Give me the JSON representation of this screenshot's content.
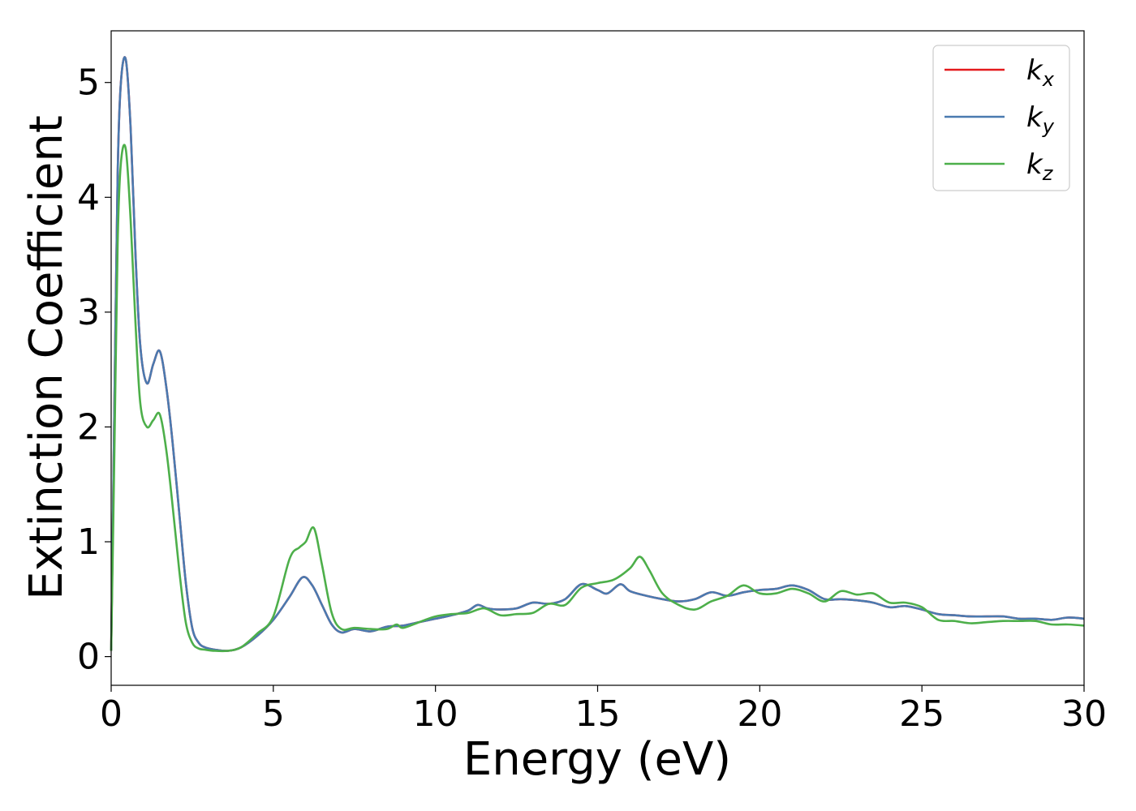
{
  "chart_data": {
    "type": "line",
    "xlabel": "Energy (eV)",
    "ylabel": "Extinction Coefficient",
    "xlim": [
      0,
      30
    ],
    "ylim": [
      -0.25,
      5.45
    ],
    "xticks": [
      0,
      5,
      10,
      15,
      20,
      25,
      30
    ],
    "yticks": [
      0,
      1,
      2,
      3,
      4,
      5
    ],
    "xtick_labels": [
      "0",
      "5",
      "10",
      "15",
      "20",
      "25",
      "30"
    ],
    "ytick_labels": [
      "0",
      "1",
      "2",
      "3",
      "4",
      "5"
    ],
    "grid": false,
    "legend_position": "top-right",
    "series": [
      {
        "name": "k_x",
        "label_main": "k",
        "label_sub": "x",
        "color": "#e41a1c",
        "x": [
          0,
          0.1,
          0.2,
          0.3,
          0.45,
          0.6,
          0.75,
          0.9,
          1.1,
          1.3,
          1.5,
          1.7,
          1.9,
          2.1,
          2.3,
          2.5,
          2.7,
          2.9,
          3.2,
          3.6,
          4.0,
          4.5,
          5.0,
          5.5,
          5.9,
          6.2,
          6.5,
          6.8,
          7.1,
          7.5,
          8.0,
          8.5,
          9.0,
          9.5,
          10.0,
          10.5,
          11.0,
          11.3,
          11.6,
          12.0,
          12.5,
          13.0,
          13.5,
          14.0,
          14.5,
          15.0,
          15.3,
          15.7,
          16.0,
          16.5,
          17.0,
          17.5,
          18.0,
          18.5,
          19.0,
          19.5,
          20.0,
          20.5,
          21.0,
          21.5,
          22.0,
          22.5,
          23.0,
          23.5,
          24.0,
          24.5,
          25.0,
          25.5,
          26.0,
          26.5,
          27.0,
          27.5,
          28.0,
          28.5,
          29.0,
          29.5,
          30.0
        ],
        "y": [
          0.05,
          2.2,
          4.2,
          5.0,
          5.2,
          4.6,
          3.5,
          2.7,
          2.38,
          2.55,
          2.66,
          2.35,
          1.85,
          1.25,
          0.65,
          0.25,
          0.12,
          0.08,
          0.06,
          0.05,
          0.08,
          0.18,
          0.32,
          0.52,
          0.69,
          0.62,
          0.45,
          0.28,
          0.21,
          0.24,
          0.22,
          0.26,
          0.27,
          0.3,
          0.33,
          0.36,
          0.4,
          0.45,
          0.42,
          0.41,
          0.42,
          0.47,
          0.46,
          0.5,
          0.63,
          0.58,
          0.55,
          0.63,
          0.57,
          0.53,
          0.5,
          0.48,
          0.5,
          0.56,
          0.53,
          0.56,
          0.58,
          0.59,
          0.62,
          0.58,
          0.5,
          0.5,
          0.49,
          0.47,
          0.43,
          0.44,
          0.41,
          0.37,
          0.36,
          0.35,
          0.35,
          0.35,
          0.33,
          0.33,
          0.32,
          0.34,
          0.33
        ]
      },
      {
        "name": "k_y",
        "label_main": "k",
        "label_sub": "y",
        "color": "#4a7ab0",
        "x": [
          0,
          0.1,
          0.2,
          0.3,
          0.45,
          0.6,
          0.75,
          0.9,
          1.1,
          1.3,
          1.5,
          1.7,
          1.9,
          2.1,
          2.3,
          2.5,
          2.7,
          2.9,
          3.2,
          3.6,
          4.0,
          4.5,
          5.0,
          5.5,
          5.9,
          6.2,
          6.5,
          6.8,
          7.1,
          7.5,
          8.0,
          8.5,
          9.0,
          9.5,
          10.0,
          10.5,
          11.0,
          11.3,
          11.6,
          12.0,
          12.5,
          13.0,
          13.5,
          14.0,
          14.5,
          15.0,
          15.3,
          15.7,
          16.0,
          16.5,
          17.0,
          17.5,
          18.0,
          18.5,
          19.0,
          19.5,
          20.0,
          20.5,
          21.0,
          21.5,
          22.0,
          22.5,
          23.0,
          23.5,
          24.0,
          24.5,
          25.0,
          25.5,
          26.0,
          26.5,
          27.0,
          27.5,
          28.0,
          28.5,
          29.0,
          29.5,
          30.0
        ],
        "y": [
          0.05,
          2.2,
          4.2,
          5.0,
          5.2,
          4.6,
          3.5,
          2.7,
          2.38,
          2.55,
          2.66,
          2.35,
          1.85,
          1.25,
          0.65,
          0.25,
          0.12,
          0.08,
          0.06,
          0.05,
          0.08,
          0.18,
          0.32,
          0.52,
          0.69,
          0.62,
          0.45,
          0.28,
          0.21,
          0.24,
          0.22,
          0.26,
          0.27,
          0.3,
          0.33,
          0.36,
          0.4,
          0.45,
          0.42,
          0.41,
          0.42,
          0.47,
          0.46,
          0.5,
          0.63,
          0.58,
          0.55,
          0.63,
          0.57,
          0.53,
          0.5,
          0.48,
          0.5,
          0.56,
          0.53,
          0.56,
          0.58,
          0.59,
          0.62,
          0.58,
          0.5,
          0.5,
          0.49,
          0.47,
          0.43,
          0.44,
          0.41,
          0.37,
          0.36,
          0.35,
          0.35,
          0.35,
          0.33,
          0.33,
          0.32,
          0.34,
          0.33
        ]
      },
      {
        "name": "k_z",
        "label_main": "k",
        "label_sub": "z",
        "color": "#4daf4a",
        "x": [
          0,
          0.1,
          0.2,
          0.3,
          0.45,
          0.6,
          0.75,
          0.9,
          1.1,
          1.3,
          1.5,
          1.7,
          1.9,
          2.1,
          2.3,
          2.5,
          2.7,
          2.9,
          3.2,
          3.6,
          4.0,
          4.5,
          5.0,
          5.5,
          5.8,
          6.0,
          6.25,
          6.5,
          6.8,
          7.1,
          7.5,
          8.0,
          8.5,
          8.8,
          9.0,
          9.5,
          10.0,
          10.5,
          11.0,
          11.5,
          12.0,
          12.5,
          13.0,
          13.5,
          14.0,
          14.5,
          15.0,
          15.5,
          16.0,
          16.3,
          16.6,
          17.0,
          17.5,
          18.0,
          18.5,
          19.0,
          19.5,
          20.0,
          20.5,
          21.0,
          21.5,
          22.0,
          22.5,
          23.0,
          23.5,
          24.0,
          24.5,
          25.0,
          25.5,
          26.0,
          26.5,
          27.0,
          27.5,
          28.0,
          28.5,
          29.0,
          29.5,
          30.0
        ],
        "y": [
          0.05,
          1.8,
          3.6,
          4.3,
          4.42,
          3.8,
          2.9,
          2.2,
          2.0,
          2.06,
          2.11,
          1.8,
          1.3,
          0.75,
          0.3,
          0.12,
          0.07,
          0.06,
          0.05,
          0.05,
          0.08,
          0.2,
          0.35,
          0.85,
          0.95,
          1.0,
          1.12,
          0.8,
          0.38,
          0.24,
          0.25,
          0.24,
          0.24,
          0.28,
          0.25,
          0.3,
          0.35,
          0.37,
          0.38,
          0.42,
          0.36,
          0.37,
          0.38,
          0.46,
          0.45,
          0.6,
          0.64,
          0.67,
          0.77,
          0.87,
          0.75,
          0.55,
          0.45,
          0.41,
          0.48,
          0.53,
          0.62,
          0.55,
          0.55,
          0.59,
          0.55,
          0.48,
          0.57,
          0.54,
          0.55,
          0.47,
          0.47,
          0.43,
          0.32,
          0.31,
          0.29,
          0.3,
          0.31,
          0.31,
          0.31,
          0.28,
          0.28,
          0.27
        ]
      }
    ]
  }
}
